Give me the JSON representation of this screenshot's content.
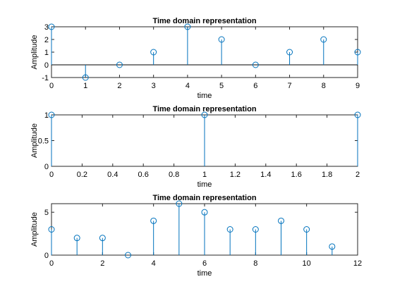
{
  "chart_data": [
    {
      "type": "stem",
      "title": "Time domain representation",
      "xlabel": "time",
      "ylabel": "Amplitude",
      "xlim": [
        0,
        9
      ],
      "ylim": [
        -1,
        3
      ],
      "xticks": [
        0,
        1,
        2,
        3,
        4,
        5,
        6,
        7,
        8,
        9
      ],
      "yticks": [
        -1,
        0,
        1,
        2,
        3
      ],
      "x": [
        0,
        1,
        2,
        3,
        4,
        5,
        6,
        7,
        8,
        9
      ],
      "y": [
        3,
        -1,
        0,
        1,
        3,
        2,
        0,
        1,
        2,
        1
      ],
      "zero_line": true,
      "grid": false
    },
    {
      "type": "stem",
      "title": "Time domain representation",
      "xlabel": "time",
      "ylabel": "Amplitude",
      "xlim": [
        0,
        2
      ],
      "ylim": [
        0,
        1
      ],
      "xticks": [
        0,
        0.2,
        0.4,
        0.6,
        0.8,
        1,
        1.2,
        1.4,
        1.6,
        1.8,
        2
      ],
      "yticks": [
        0,
        0.5,
        1
      ],
      "x": [
        0,
        1,
        2
      ],
      "y": [
        1,
        1,
        1
      ],
      "zero_line": false,
      "grid": false
    },
    {
      "type": "stem",
      "title": "Time domain representation",
      "xlabel": "time",
      "ylabel": "Amplitude",
      "xlim": [
        0,
        12
      ],
      "ylim": [
        0,
        6
      ],
      "xticks": [
        0,
        2,
        4,
        6,
        8,
        10,
        12
      ],
      "yticks": [
        0,
        5
      ],
      "x": [
        0,
        1,
        2,
        3,
        4,
        5,
        6,
        7,
        8,
        9,
        10,
        11
      ],
      "y": [
        3,
        2,
        2,
        0,
        4,
        6,
        5,
        3,
        3,
        4,
        3,
        1
      ],
      "zero_line": false,
      "grid": false
    }
  ],
  "colors": {
    "stem": "#0072BD",
    "axis": "#262626",
    "background": "#ffffff"
  }
}
